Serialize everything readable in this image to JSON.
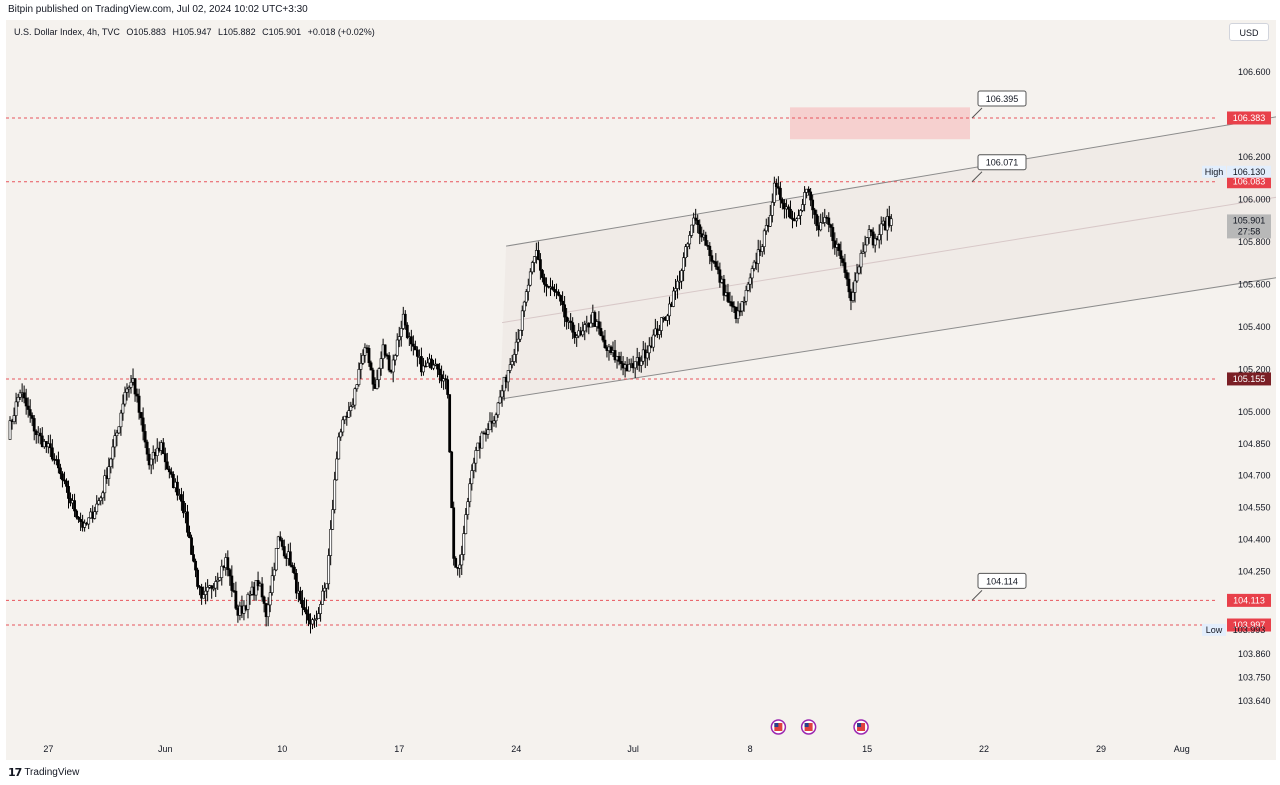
{
  "header": {
    "published_by": "Bitpin published on TradingView.com, Jul 02, 2024 10:02 UTC+3:30"
  },
  "legend": {
    "symbol": "U.S. Dollar Index, 4h, TVC",
    "open": "O105.883",
    "high": "H105.947",
    "low": "L105.882",
    "close": "C105.901",
    "change": "+0.018 (+0.02%)"
  },
  "currency_button": "USD",
  "footer": {
    "brand": "TradingView",
    "logo_glyph": "17"
  },
  "colors": {
    "background": "#f5f2ee",
    "up_candle": "#ffffff",
    "down_candle": "#000000",
    "level_line": "#e8545c",
    "level_tag": "#e8404a",
    "support_tag": "#7a1f25",
    "channel": "#8c8c8c"
  },
  "chart_data": {
    "type": "candlestick",
    "symbol": "U.S. Dollar Index",
    "timeframe": "4h",
    "source": "TVC",
    "ylim": [
      103.55,
      106.75
    ],
    "y_ticks": [
      "106.600",
      "106.200",
      "106.000",
      "105.800",
      "105.600",
      "105.400",
      "105.200",
      "105.000",
      "104.850",
      "104.700",
      "104.550",
      "104.400",
      "104.250",
      "104.100",
      "103.860",
      "103.750",
      "103.640"
    ],
    "x_ticks": [
      "27",
      "Jun",
      "10",
      "17",
      "24",
      "Jul",
      "8",
      "15",
      "22",
      "29",
      "Aug"
    ],
    "candle_path": [
      [
        0,
        104.9
      ],
      [
        6,
        105.1
      ],
      [
        14,
        104.9
      ],
      [
        22,
        104.8
      ],
      [
        30,
        104.6
      ],
      [
        38,
        104.45
      ],
      [
        46,
        104.6
      ],
      [
        54,
        104.9
      ],
      [
        58,
        105.1
      ],
      [
        62,
        105.15
      ],
      [
        66,
        104.95
      ],
      [
        70,
        104.75
      ],
      [
        76,
        104.85
      ],
      [
        80,
        104.7
      ],
      [
        86,
        104.6
      ],
      [
        92,
        104.3
      ],
      [
        96,
        104.1
      ],
      [
        102,
        104.2
      ],
      [
        108,
        104.3
      ],
      [
        114,
        104.05
      ],
      [
        118,
        104.1
      ],
      [
        124,
        104.2
      ],
      [
        128,
        104.05
      ],
      [
        134,
        104.4
      ],
      [
        140,
        104.3
      ],
      [
        146,
        104.05
      ],
      [
        152,
        104.0
      ],
      [
        158,
        104.2
      ],
      [
        164,
        104.9
      ],
      [
        170,
        105.0
      ],
      [
        174,
        105.2
      ],
      [
        178,
        105.3
      ],
      [
        182,
        105.1
      ],
      [
        186,
        105.3
      ],
      [
        190,
        105.2
      ],
      [
        196,
        105.45
      ],
      [
        200,
        105.3
      ],
      [
        206,
        105.2
      ],
      [
        212,
        105.25
      ],
      [
        218,
        105.1
      ],
      [
        221,
        104.3
      ],
      [
        224,
        104.25
      ],
      [
        230,
        104.75
      ],
      [
        236,
        104.9
      ],
      [
        242,
        105.0
      ],
      [
        248,
        105.2
      ],
      [
        254,
        105.4
      ],
      [
        258,
        105.6
      ],
      [
        262,
        105.75
      ],
      [
        266,
        105.6
      ],
      [
        272,
        105.55
      ],
      [
        278,
        105.4
      ],
      [
        284,
        105.35
      ],
      [
        290,
        105.45
      ],
      [
        296,
        105.3
      ],
      [
        302,
        105.25
      ],
      [
        308,
        105.2
      ],
      [
        314,
        105.25
      ],
      [
        320,
        105.35
      ],
      [
        326,
        105.45
      ],
      [
        332,
        105.6
      ],
      [
        336,
        105.75
      ],
      [
        340,
        105.9
      ],
      [
        344,
        105.85
      ],
      [
        348,
        105.75
      ],
      [
        354,
        105.6
      ],
      [
        358,
        105.5
      ],
      [
        362,
        105.45
      ],
      [
        366,
        105.55
      ],
      [
        372,
        105.75
      ],
      [
        376,
        105.85
      ],
      [
        380,
        106.05
      ],
      [
        384,
        106.0
      ],
      [
        390,
        105.9
      ],
      [
        396,
        106.05
      ],
      [
        402,
        105.85
      ],
      [
        406,
        105.9
      ],
      [
        410,
        105.8
      ],
      [
        414,
        105.7
      ],
      [
        418,
        105.55
      ],
      [
        422,
        105.7
      ],
      [
        426,
        105.85
      ],
      [
        430,
        105.8
      ],
      [
        434,
        105.88
      ],
      [
        438,
        105.9
      ]
    ],
    "channel": {
      "upper": [
        [
          247,
          105.78
        ],
        [
          655,
          106.43
        ]
      ],
      "lower": [
        [
          244,
          105.06
        ],
        [
          655,
          105.67
        ]
      ],
      "middle": [
        [
          245,
          105.42
        ],
        [
          655,
          106.05
        ]
      ]
    },
    "levels": [
      {
        "value": 106.383,
        "tag": "106.383",
        "annotation": "106.395"
      },
      {
        "value": 106.083,
        "tag": "106.083",
        "annotation": "106.071"
      },
      {
        "value": 105.155,
        "tag": "105.155",
        "annotation": ""
      },
      {
        "value": 104.113,
        "tag": "104.113",
        "annotation": "104.114"
      },
      {
        "value": 103.997,
        "tag": "103.997",
        "annotation": ""
      }
    ],
    "price_labels": {
      "current_price": "105.901",
      "countdown": "27:58",
      "high_label": "High",
      "high_value": "106.130",
      "low_label": "Low",
      "low_value": "103.993"
    },
    "grid": false
  }
}
